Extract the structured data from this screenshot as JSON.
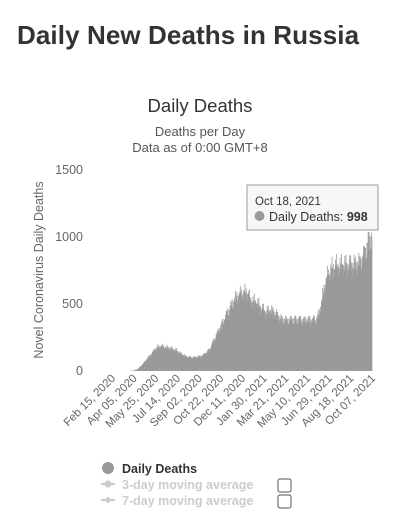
{
  "page": {
    "title": "Daily New Deaths in Russia"
  },
  "colors": {
    "bars": "#999999",
    "legend_inactive": "#cccccc",
    "axis_text": "#666666"
  },
  "chart_data": {
    "type": "bar",
    "title": "Daily Deaths",
    "subtitle": "Deaths per Day",
    "subtitle2": "Data as of 0:00 GMT+8",
    "ylabel": "Novel Coronavirus Daily Deaths",
    "xlabel": "",
    "ylim": [
      0,
      1500
    ],
    "yticks": [
      0,
      500,
      1000,
      1500
    ],
    "grid": false,
    "x_start": "2020-02-15",
    "x_end": "2021-10-18",
    "x_tick_labels": [
      "Feb 15, 2020",
      "Apr 05, 2020",
      "May 25, 2020",
      "Jul 14, 2020",
      "Sep 02, 2020",
      "Oct 22, 2020",
      "Dec 11, 2020",
      "Jan 30, 2021",
      "Mar 21, 2021",
      "May 10, 2021",
      "Jun 29, 2021",
      "Aug 18, 2021",
      "Oct 07, 2021"
    ],
    "series": [
      {
        "name": "Daily Deaths",
        "points": [
          [
            "2020-02-15",
            0
          ],
          [
            "2020-03-25",
            0
          ],
          [
            "2020-04-05",
            3
          ],
          [
            "2020-04-15",
            15
          ],
          [
            "2020-04-25",
            45
          ],
          [
            "2020-05-05",
            85
          ],
          [
            "2020-05-15",
            120
          ],
          [
            "2020-05-25",
            160
          ],
          [
            "2020-06-01",
            180
          ],
          [
            "2020-06-10",
            185
          ],
          [
            "2020-06-20",
            175
          ],
          [
            "2020-07-01",
            170
          ],
          [
            "2020-07-14",
            155
          ],
          [
            "2020-07-25",
            130
          ],
          [
            "2020-08-05",
            110
          ],
          [
            "2020-08-20",
            100
          ],
          [
            "2020-09-02",
            105
          ],
          [
            "2020-09-15",
            115
          ],
          [
            "2020-10-01",
            160
          ],
          [
            "2020-10-10",
            220
          ],
          [
            "2020-10-22",
            300
          ],
          [
            "2020-11-01",
            360
          ],
          [
            "2020-11-10",
            420
          ],
          [
            "2020-11-20",
            480
          ],
          [
            "2020-12-01",
            540
          ],
          [
            "2020-12-11",
            570
          ],
          [
            "2020-12-20",
            580
          ],
          [
            "2020-12-28",
            590
          ],
          [
            "2021-01-05",
            530
          ],
          [
            "2021-01-12",
            520
          ],
          [
            "2021-01-20",
            510
          ],
          [
            "2021-01-30",
            470
          ],
          [
            "2021-02-10",
            440
          ],
          [
            "2021-02-20",
            450
          ],
          [
            "2021-03-01",
            440
          ],
          [
            "2021-03-10",
            410
          ],
          [
            "2021-03-21",
            380
          ],
          [
            "2021-04-01",
            375
          ],
          [
            "2021-04-15",
            380
          ],
          [
            "2021-05-01",
            380
          ],
          [
            "2021-05-10",
            375
          ],
          [
            "2021-05-25",
            380
          ],
          [
            "2021-06-08",
            380
          ],
          [
            "2021-06-15",
            420
          ],
          [
            "2021-06-22",
            520
          ],
          [
            "2021-06-29",
            640
          ],
          [
            "2021-07-06",
            710
          ],
          [
            "2021-07-15",
            760
          ],
          [
            "2021-07-25",
            780
          ],
          [
            "2021-08-05",
            785
          ],
          [
            "2021-08-18",
            790
          ],
          [
            "2021-08-30",
            790
          ],
          [
            "2021-09-10",
            790
          ],
          [
            "2021-09-20",
            805
          ],
          [
            "2021-09-28",
            850
          ],
          [
            "2021-10-07",
            930
          ],
          [
            "2021-10-12",
            970
          ],
          [
            "2021-10-18",
            998
          ]
        ]
      }
    ],
    "tooltip": {
      "date": "Oct 18, 2021",
      "series": "Daily Deaths:",
      "value": "998"
    },
    "legend": {
      "placement": "bottom-center",
      "items": [
        {
          "label": "Daily Deaths",
          "active": true
        },
        {
          "label": "3-day moving average",
          "active": false
        },
        {
          "label": "7-day moving average",
          "active": false
        }
      ]
    }
  }
}
